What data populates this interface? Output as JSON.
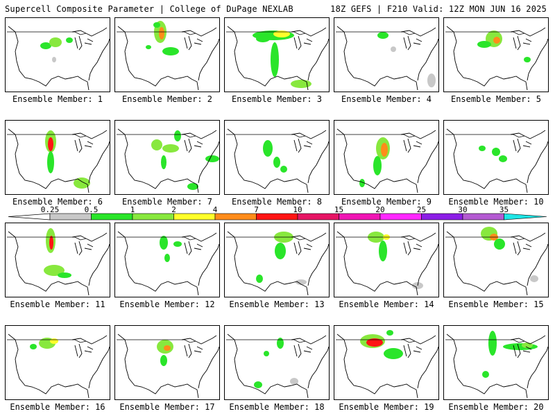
{
  "header": {
    "title_left": "Supercell Composite Parameter | College of DuPage NEXLAB",
    "title_right": "18Z GEFS | F210 Valid: 12Z MON JUN 16 2025"
  },
  "panel_label_prefix": "Ensemble Member: ",
  "colorbar": {
    "ticks": [
      "0.25",
      "0.5",
      "1",
      "2",
      "4",
      "7",
      "10",
      "15",
      "20",
      "25",
      "30",
      "35"
    ],
    "colors": [
      "#c8c8c8",
      "#2ae52a",
      "#88e83e",
      "#ffff2a",
      "#ff8c1a",
      "#ff1414",
      "#e61464",
      "#f014b4",
      "#ff28ff",
      "#8c1ee6",
      "#b45ad2",
      "#1ee6e6"
    ]
  },
  "members": [
    {
      "number": 1,
      "blobs": [
        [
          58,
          40,
          8,
          5,
          1
        ],
        [
          72,
          35,
          9,
          7,
          2
        ],
        [
          92,
          32,
          5,
          4,
          1
        ],
        [
          70,
          60,
          3,
          4,
          0
        ]
      ]
    },
    {
      "number": 2,
      "blobs": [
        [
          65,
          20,
          9,
          16,
          2
        ],
        [
          67,
          22,
          4,
          9,
          4
        ],
        [
          80,
          48,
          12,
          6,
          1
        ],
        [
          60,
          10,
          5,
          4,
          1
        ],
        [
          48,
          42,
          4,
          3,
          1
        ]
      ]
    },
    {
      "number": 3,
      "blobs": [
        [
          70,
          25,
          30,
          7,
          1
        ],
        [
          72,
          60,
          6,
          25,
          1
        ],
        [
          82,
          23,
          12,
          5,
          3
        ],
        [
          110,
          95,
          15,
          6,
          2
        ],
        [
          55,
          30,
          10,
          5,
          1
        ]
      ]
    },
    {
      "number": 4,
      "blobs": [
        [
          70,
          25,
          8,
          5,
          1
        ],
        [
          85,
          45,
          4,
          4,
          0
        ],
        [
          140,
          90,
          6,
          10,
          0
        ]
      ]
    },
    {
      "number": 5,
      "blobs": [
        [
          72,
          30,
          12,
          12,
          2
        ],
        [
          76,
          32,
          5,
          5,
          4
        ],
        [
          58,
          38,
          10,
          5,
          1
        ],
        [
          120,
          60,
          5,
          4,
          1
        ]
      ]
    },
    {
      "number": 6,
      "blobs": [
        [
          65,
          30,
          8,
          16,
          2
        ],
        [
          65,
          34,
          4,
          10,
          5
        ],
        [
          65,
          60,
          5,
          16,
          1
        ],
        [
          110,
          90,
          12,
          8,
          2
        ]
      ]
    },
    {
      "number": 7,
      "blobs": [
        [
          60,
          35,
          8,
          8,
          2
        ],
        [
          80,
          40,
          12,
          6,
          2
        ],
        [
          90,
          22,
          5,
          8,
          1
        ],
        [
          70,
          60,
          4,
          10,
          1
        ],
        [
          140,
          55,
          10,
          5,
          1
        ],
        [
          112,
          95,
          8,
          5,
          1
        ]
      ]
    },
    {
      "number": 8,
      "blobs": [
        [
          62,
          40,
          7,
          12,
          1
        ],
        [
          75,
          60,
          5,
          8,
          1
        ],
        [
          85,
          70,
          5,
          5,
          1
        ]
      ]
    },
    {
      "number": 9,
      "blobs": [
        [
          70,
          40,
          10,
          16,
          2
        ],
        [
          72,
          42,
          5,
          10,
          4
        ],
        [
          62,
          65,
          6,
          14,
          1
        ],
        [
          40,
          90,
          4,
          6,
          1
        ]
      ]
    },
    {
      "number": 10,
      "blobs": [
        [
          75,
          45,
          6,
          6,
          1
        ],
        [
          55,
          40,
          5,
          4,
          1
        ],
        [
          85,
          55,
          6,
          5,
          1
        ]
      ]
    },
    {
      "number": 11,
      "blobs": [
        [
          65,
          25,
          7,
          18,
          2
        ],
        [
          66,
          28,
          3,
          10,
          5
        ],
        [
          70,
          68,
          15,
          8,
          2
        ],
        [
          85,
          75,
          10,
          4,
          1
        ]
      ]
    },
    {
      "number": 12,
      "blobs": [
        [
          70,
          28,
          6,
          10,
          1
        ],
        [
          90,
          30,
          6,
          4,
          1
        ],
        [
          75,
          50,
          4,
          6,
          1
        ]
      ]
    },
    {
      "number": 13,
      "blobs": [
        [
          85,
          20,
          14,
          8,
          2
        ],
        [
          80,
          40,
          8,
          12,
          1
        ],
        [
          50,
          80,
          5,
          6,
          1
        ],
        [
          110,
          85,
          8,
          4,
          0
        ]
      ]
    },
    {
      "number": 14,
      "blobs": [
        [
          60,
          20,
          12,
          8,
          2
        ],
        [
          75,
          20,
          5,
          4,
          3
        ],
        [
          70,
          40,
          6,
          15,
          1
        ],
        [
          120,
          90,
          8,
          5,
          0
        ]
      ]
    },
    {
      "number": 15,
      "blobs": [
        [
          65,
          15,
          12,
          10,
          2
        ],
        [
          72,
          20,
          6,
          5,
          4
        ],
        [
          80,
          30,
          8,
          8,
          1
        ],
        [
          130,
          80,
          6,
          5,
          0
        ]
      ]
    },
    {
      "number": 16,
      "blobs": [
        [
          60,
          25,
          12,
          8,
          2
        ],
        [
          70,
          22,
          6,
          4,
          3
        ],
        [
          40,
          30,
          5,
          4,
          1
        ]
      ]
    },
    {
      "number": 17,
      "blobs": [
        [
          72,
          30,
          12,
          10,
          2
        ],
        [
          75,
          32,
          5,
          4,
          4
        ],
        [
          70,
          50,
          5,
          8,
          1
        ]
      ]
    },
    {
      "number": 18,
      "blobs": [
        [
          80,
          25,
          5,
          8,
          1
        ],
        [
          60,
          40,
          4,
          4,
          1
        ],
        [
          48,
          85,
          6,
          5,
          1
        ],
        [
          100,
          80,
          6,
          5,
          0
        ]
      ]
    },
    {
      "number": 19,
      "blobs": [
        [
          55,
          22,
          18,
          10,
          2
        ],
        [
          58,
          24,
          12,
          6,
          5
        ],
        [
          85,
          40,
          14,
          8,
          1
        ],
        [
          80,
          10,
          5,
          4,
          1
        ]
      ]
    },
    {
      "number": 20,
      "blobs": [
        [
          110,
          30,
          25,
          5,
          1
        ],
        [
          120,
          28,
          8,
          4,
          2
        ],
        [
          70,
          25,
          6,
          18,
          1
        ],
        [
          60,
          70,
          5,
          5,
          1
        ]
      ]
    }
  ]
}
